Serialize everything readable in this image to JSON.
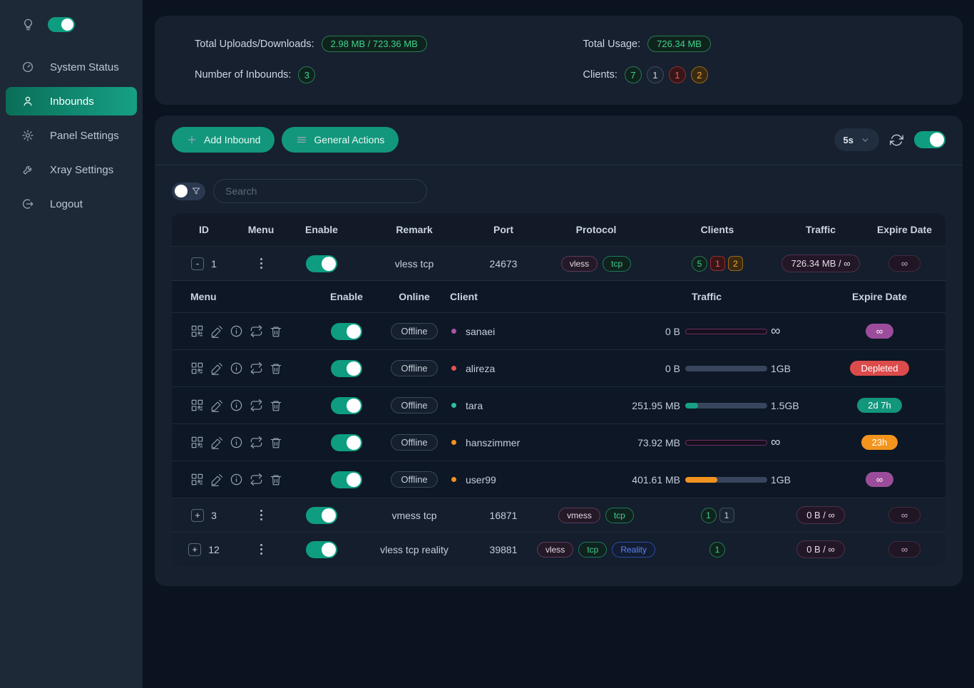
{
  "palette": {
    "background": "#0b1320",
    "sidebar": "#1d2937",
    "card": "#16202e",
    "accent_teal": "#12977c",
    "toggle_on": "#0e9d81",
    "green_badge": "#41d08c",
    "red_badge": "#dc4b4b",
    "orange_badge": "#f3941d",
    "purple_badge": "#9b4d9b",
    "reality_blue": "#5a86f0"
  },
  "icons": {
    "bulb-icon": "light bulb (theme)",
    "gauge-icon": "speedometer",
    "user-icon": "person",
    "gear-icon": "cog",
    "wrench-icon": "wrench",
    "logout-icon": "arrow leaving circle",
    "plus-icon": "+",
    "menu-lines-icon": "three horizontal lines",
    "chevron-down-icon": "v",
    "refresh-icon": "circular arrows",
    "funnel-icon": "filter funnel",
    "qr-icon": "qr code",
    "edit-icon": "pencil",
    "info-icon": "i in circle",
    "reset-icon": "repeat arrows",
    "trash-icon": "trash bin",
    "dots-icon": "vertical ellipsis"
  },
  "sidebar": {
    "theme_toggle_on": true,
    "items": [
      {
        "label": "System Status"
      },
      {
        "label": "Inbounds"
      },
      {
        "label": "Panel Settings"
      },
      {
        "label": "Xray Settings"
      },
      {
        "label": "Logout"
      }
    ]
  },
  "stats": {
    "uploads_label": "Total Uploads/Downloads:",
    "uploads_value": "2.98 MB / 723.36 MB",
    "inbounds_label": "Number of Inbounds:",
    "inbounds_value": "3",
    "usage_label": "Total Usage:",
    "usage_value": "726.34 MB",
    "clients_label": "Clients:",
    "clients_counts": {
      "total": "7",
      "gray": "1",
      "red": "1",
      "orange": "2"
    }
  },
  "toolbar": {
    "add_inbound_label": "Add Inbound",
    "general_actions_label": "General Actions",
    "refresh_interval": "5s",
    "auto_refresh_on": true
  },
  "search": {
    "placeholder": "Search"
  },
  "inbounds": {
    "headers": {
      "id": "ID",
      "menu": "Menu",
      "enable": "Enable",
      "remark": "Remark",
      "port": "Port",
      "protocol": "Protocol",
      "clients": "Clients",
      "traffic": "Traffic",
      "expire": "Expire Date"
    },
    "rows": [
      {
        "expand": "-",
        "id": "1",
        "enabled": true,
        "remark": "vless tcp",
        "port": "24673",
        "protocols": {
          "p1": "vless",
          "p2": "tcp"
        },
        "clients": {
          "green": "5",
          "red": "1",
          "orange": "2"
        },
        "traffic": "726.34 MB / ∞",
        "expire": "∞"
      },
      {
        "expand": "+",
        "id": "3",
        "enabled": true,
        "remark": "vmess tcp",
        "port": "16871",
        "protocols": {
          "p1": "vmess",
          "p2": "tcp"
        },
        "clients": {
          "green": "1",
          "gray": "1"
        },
        "traffic": "0 B / ∞",
        "expire": "∞"
      },
      {
        "expand": "+",
        "id": "12",
        "enabled": true,
        "remark": "vless tcp reality",
        "port": "39881",
        "protocols": {
          "p1": "vless",
          "p2": "tcp",
          "p3": "Reality"
        },
        "clients": {
          "green": "1"
        },
        "traffic": "0 B / ∞",
        "expire": "∞"
      }
    ]
  },
  "clients": {
    "headers": {
      "menu": "Menu",
      "enable": "Enable",
      "online": "Online",
      "client": "Client",
      "traffic": "Traffic",
      "expire": "Expire Date"
    },
    "rows": [
      {
        "status": "Offline",
        "name": "sanaei",
        "enabled": true,
        "used": "0 B",
        "limit": "∞",
        "percent": 0,
        "unlimited": true,
        "expire": "∞"
      },
      {
        "status": "Offline",
        "name": "alireza",
        "enabled": true,
        "used": "0 B",
        "limit": "1GB",
        "percent": 0,
        "unlimited": false,
        "expire": "Depleted"
      },
      {
        "status": "Offline",
        "name": "tara",
        "enabled": true,
        "used": "251.95 MB",
        "limit": "1.5GB",
        "percent": 16,
        "unlimited": false,
        "expire": "2d 7h"
      },
      {
        "status": "Offline",
        "name": "hanszimmer",
        "enabled": true,
        "used": "73.92 MB",
        "limit": "∞",
        "percent": 0,
        "unlimited": true,
        "expire": "23h"
      },
      {
        "status": "Offline",
        "name": "user99",
        "enabled": true,
        "used": "401.61 MB",
        "limit": "1GB",
        "percent": 39,
        "unlimited": false,
        "expire": "∞"
      }
    ]
  }
}
